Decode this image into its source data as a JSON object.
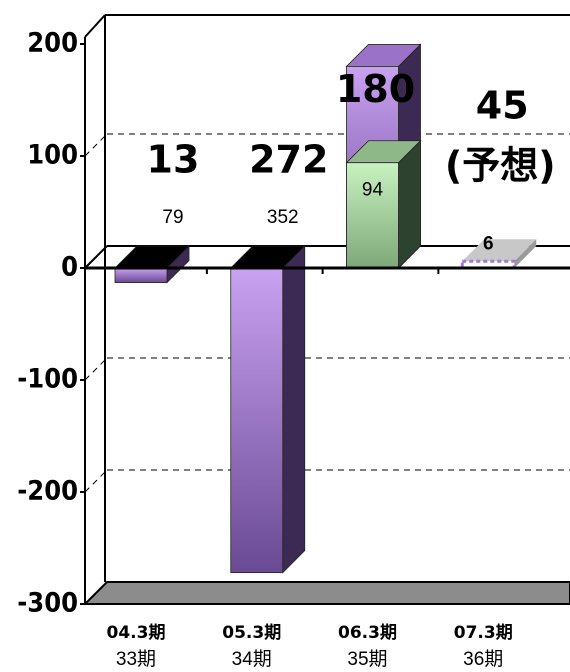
{
  "chart_data": {
    "type": "bar3d",
    "categories": [
      "04.3期",
      "05.3期",
      "06.3期",
      "07.3期"
    ],
    "periods": [
      "33期",
      "34期",
      "35期",
      "36期"
    ],
    "series": [
      {
        "color": "#a27ad6",
        "values": [
          -13,
          -272,
          180,
          null
        ],
        "value_labels": [
          "13",
          "272",
          "180",
          null
        ]
      },
      {
        "color": "#b8e8b0",
        "values": [
          null,
          null,
          94,
          6
        ]
      }
    ],
    "annotations": [
      {
        "text": "79"
      },
      {
        "text": "352"
      },
      {
        "text": "45"
      },
      {
        "text": "(予想)"
      }
    ],
    "ylim": [
      -300,
      200
    ],
    "yticks": [
      200,
      100,
      0,
      -100,
      -200,
      -300
    ],
    "grid": true
  }
}
